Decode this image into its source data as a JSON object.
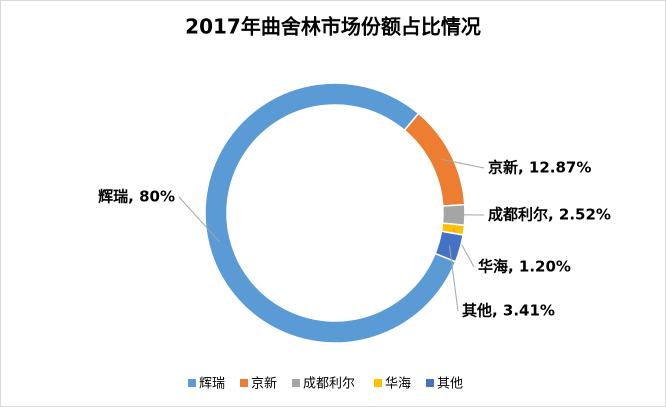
{
  "chart_data": {
    "type": "donut",
    "title": "2017年曲舍林市场份额占比情况",
    "categories": [
      "辉瑞",
      "京新",
      "成都利尔",
      "华海",
      "其他"
    ],
    "values": [
      80,
      12.87,
      2.52,
      1.2,
      3.41
    ],
    "value_labels": [
      "辉瑞, 80%",
      "京新, 12.87%",
      "成都利尔, 2.52%",
      "华海, 1.20%",
      "其他, 3.41%"
    ],
    "colors": [
      "#5b9bd5",
      "#ed7d31",
      "#a5a5a5",
      "#ffc000",
      "#4472c4"
    ],
    "legend": "bottom"
  }
}
